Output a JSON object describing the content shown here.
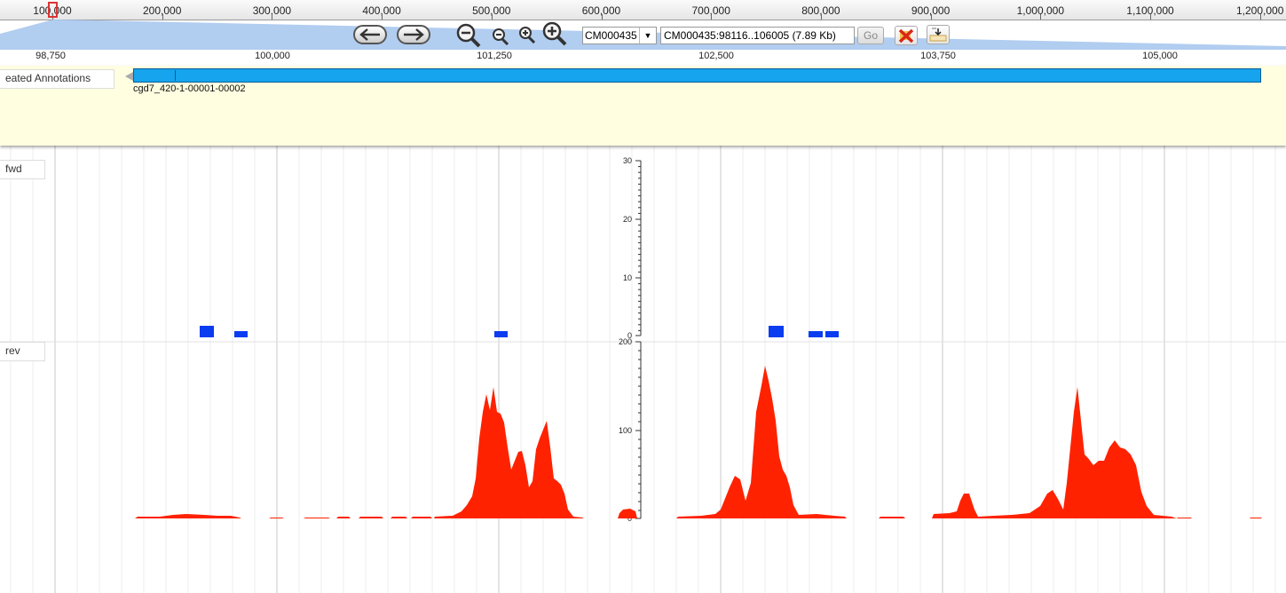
{
  "overview": {
    "labels": [
      "100,000",
      "200,000",
      "300,000",
      "400,000",
      "500,000",
      "600,000",
      "700,000",
      "800,000",
      "900,000",
      "1,000,000",
      "1,100,000",
      "1,200,000"
    ]
  },
  "nav": {
    "back_icon": "arrow-left-icon",
    "forward_icon": "arrow-right-icon",
    "zoom_out_big_icon": "zoom-out-large-icon",
    "zoom_out_small_icon": "zoom-out-small-icon",
    "zoom_in_small_icon": "zoom-in-small-icon",
    "zoom_in_big_icon": "zoom-in-large-icon",
    "reference_sequence": "CM000435",
    "location": "CM000435:98116..106005 (7.89 Kb)",
    "go_label": "Go",
    "clear_icon": "clear-highlight-icon",
    "export_icon": "export-icon"
  },
  "ruler": {
    "labels": [
      "98,750",
      "100,000",
      "101,250",
      "102,500",
      "103,750",
      "105,000"
    ]
  },
  "annotations": {
    "track_label": "eated Annotations",
    "feature_name": "cgd7_420-1-00001-00002",
    "feature_color": "#16a4ee"
  },
  "tracks": {
    "fwd_label": "fwd",
    "rev_label": "rev",
    "fwd_ticks": [
      "30",
      "20",
      "10",
      "0"
    ],
    "rev_ticks": [
      "200",
      "100",
      "0"
    ],
    "fwd_color": "#0a3cf0",
    "rev_color": "#ff2200"
  }
}
